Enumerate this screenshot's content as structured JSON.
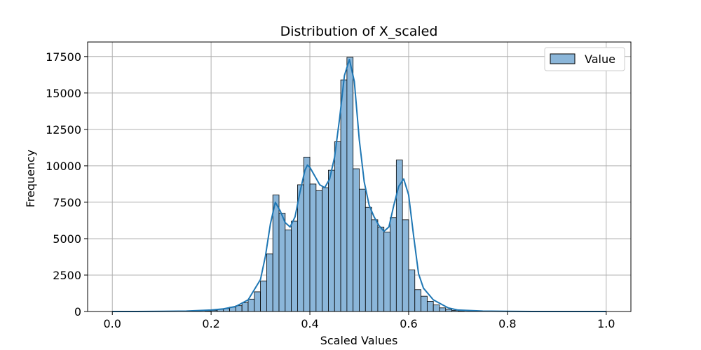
{
  "chart_data": {
    "type": "bar",
    "title": "Distribution of X_scaled",
    "xlabel": "Scaled Values",
    "ylabel": "Frequency",
    "xlim": [
      -0.05,
      1.05
    ],
    "ylim": [
      0,
      18500
    ],
    "xticks": [
      0.0,
      0.2,
      0.4,
      0.6,
      0.8,
      1.0
    ],
    "xtick_labels": [
      "0.0",
      "0.2",
      "0.4",
      "0.6",
      "0.8",
      "1.0"
    ],
    "yticks": [
      0,
      2500,
      5000,
      7500,
      10000,
      12500,
      15000,
      17500
    ],
    "ytick_labels": [
      "0",
      "2500",
      "5000",
      "7500",
      "10000",
      "12500",
      "15000",
      "17500"
    ],
    "grid": true,
    "legend_position": "top-right",
    "series": [
      {
        "name": "Value",
        "color": "#8bb6d9",
        "edge_color": "#000000",
        "bin_width": 0.0125,
        "bins": [
          {
            "x": 0.0,
            "y": 0
          },
          {
            "x": 0.0125,
            "y": 0
          },
          {
            "x": 0.025,
            "y": 0
          },
          {
            "x": 0.0375,
            "y": 0
          },
          {
            "x": 0.05,
            "y": 0
          },
          {
            "x": 0.0625,
            "y": 0
          },
          {
            "x": 0.075,
            "y": 0
          },
          {
            "x": 0.0875,
            "y": 0
          },
          {
            "x": 0.1,
            "y": 0
          },
          {
            "x": 0.1125,
            "y": 0
          },
          {
            "x": 0.125,
            "y": 0
          },
          {
            "x": 0.1375,
            "y": 0
          },
          {
            "x": 0.15,
            "y": 0
          },
          {
            "x": 0.1625,
            "y": 0
          },
          {
            "x": 0.175,
            "y": 0
          },
          {
            "x": 0.1875,
            "y": 50
          },
          {
            "x": 0.2,
            "y": 80
          },
          {
            "x": 0.2125,
            "y": 150
          },
          {
            "x": 0.225,
            "y": 200
          },
          {
            "x": 0.2375,
            "y": 300
          },
          {
            "x": 0.25,
            "y": 400
          },
          {
            "x": 0.2625,
            "y": 600
          },
          {
            "x": 0.275,
            "y": 850
          },
          {
            "x": 0.2875,
            "y": 1350
          },
          {
            "x": 0.3,
            "y": 2100
          },
          {
            "x": 0.3125,
            "y": 3950
          },
          {
            "x": 0.325,
            "y": 8000
          },
          {
            "x": 0.3375,
            "y": 6750
          },
          {
            "x": 0.35,
            "y": 5600
          },
          {
            "x": 0.3625,
            "y": 6200
          },
          {
            "x": 0.375,
            "y": 8700
          },
          {
            "x": 0.3875,
            "y": 10600
          },
          {
            "x": 0.4,
            "y": 8750
          },
          {
            "x": 0.4125,
            "y": 8300
          },
          {
            "x": 0.425,
            "y": 8500
          },
          {
            "x": 0.4375,
            "y": 9700
          },
          {
            "x": 0.45,
            "y": 11650
          },
          {
            "x": 0.4625,
            "y": 15900
          },
          {
            "x": 0.475,
            "y": 17450
          },
          {
            "x": 0.4875,
            "y": 9800
          },
          {
            "x": 0.5,
            "y": 8400
          },
          {
            "x": 0.5125,
            "y": 7150
          },
          {
            "x": 0.525,
            "y": 6300
          },
          {
            "x": 0.5375,
            "y": 5800
          },
          {
            "x": 0.55,
            "y": 5450
          },
          {
            "x": 0.5625,
            "y": 6450
          },
          {
            "x": 0.575,
            "y": 10400
          },
          {
            "x": 0.5875,
            "y": 6300
          },
          {
            "x": 0.6,
            "y": 2850
          },
          {
            "x": 0.6125,
            "y": 1500
          },
          {
            "x": 0.625,
            "y": 1050
          },
          {
            "x": 0.6375,
            "y": 700
          },
          {
            "x": 0.65,
            "y": 450
          },
          {
            "x": 0.6625,
            "y": 250
          },
          {
            "x": 0.675,
            "y": 150
          },
          {
            "x": 0.6875,
            "y": 80
          },
          {
            "x": 0.7,
            "y": 50
          },
          {
            "x": 0.7125,
            "y": 0
          },
          {
            "x": 0.725,
            "y": 0
          },
          {
            "x": 0.7375,
            "y": 0
          },
          {
            "x": 0.75,
            "y": 0
          },
          {
            "x": 0.7625,
            "y": 0
          },
          {
            "x": 0.775,
            "y": 0
          },
          {
            "x": 0.7875,
            "y": 0
          },
          {
            "x": 0.8,
            "y": 0
          },
          {
            "x": 0.8125,
            "y": 0
          },
          {
            "x": 0.825,
            "y": 0
          },
          {
            "x": 0.8375,
            "y": 0
          },
          {
            "x": 0.85,
            "y": 0
          },
          {
            "x": 0.8625,
            "y": 0
          },
          {
            "x": 0.875,
            "y": 0
          },
          {
            "x": 0.8875,
            "y": 0
          },
          {
            "x": 0.9,
            "y": 0
          },
          {
            "x": 0.9125,
            "y": 0
          },
          {
            "x": 0.925,
            "y": 0
          },
          {
            "x": 0.9375,
            "y": 0
          },
          {
            "x": 0.95,
            "y": 0
          },
          {
            "x": 0.9625,
            "y": 0
          },
          {
            "x": 0.975,
            "y": 0
          },
          {
            "x": 0.9875,
            "y": 0
          }
        ],
        "kde": {
          "color": "#1f77b4",
          "points": [
            [
              0.0,
              0
            ],
            [
              0.05,
              0
            ],
            [
              0.1,
              10
            ],
            [
              0.15,
              30
            ],
            [
              0.2,
              100
            ],
            [
              0.225,
              180
            ],
            [
              0.25,
              350
            ],
            [
              0.275,
              800
            ],
            [
              0.3,
              2200
            ],
            [
              0.31,
              3800
            ],
            [
              0.32,
              6000
            ],
            [
              0.33,
              7500
            ],
            [
              0.34,
              6900
            ],
            [
              0.35,
              6100
            ],
            [
              0.36,
              5800
            ],
            [
              0.37,
              6500
            ],
            [
              0.38,
              8200
            ],
            [
              0.39,
              9700
            ],
            [
              0.395,
              10050
            ],
            [
              0.4,
              9900
            ],
            [
              0.41,
              9300
            ],
            [
              0.42,
              8700
            ],
            [
              0.43,
              8500
            ],
            [
              0.44,
              9100
            ],
            [
              0.45,
              10600
            ],
            [
              0.46,
              13200
            ],
            [
              0.47,
              16200
            ],
            [
              0.48,
              17300
            ],
            [
              0.49,
              15800
            ],
            [
              0.5,
              11800
            ],
            [
              0.51,
              8900
            ],
            [
              0.52,
              7300
            ],
            [
              0.53,
              6500
            ],
            [
              0.54,
              5900
            ],
            [
              0.55,
              5500
            ],
            [
              0.56,
              5800
            ],
            [
              0.57,
              7300
            ],
            [
              0.58,
              8600
            ],
            [
              0.59,
              9100
            ],
            [
              0.6,
              8000
            ],
            [
              0.61,
              5200
            ],
            [
              0.62,
              2600
            ],
            [
              0.63,
              1600
            ],
            [
              0.65,
              800
            ],
            [
              0.68,
              250
            ],
            [
              0.7,
              100
            ],
            [
              0.75,
              30
            ],
            [
              0.8,
              10
            ],
            [
              0.85,
              0
            ],
            [
              0.9,
              0
            ],
            [
              1.0,
              0
            ]
          ]
        }
      }
    ]
  }
}
